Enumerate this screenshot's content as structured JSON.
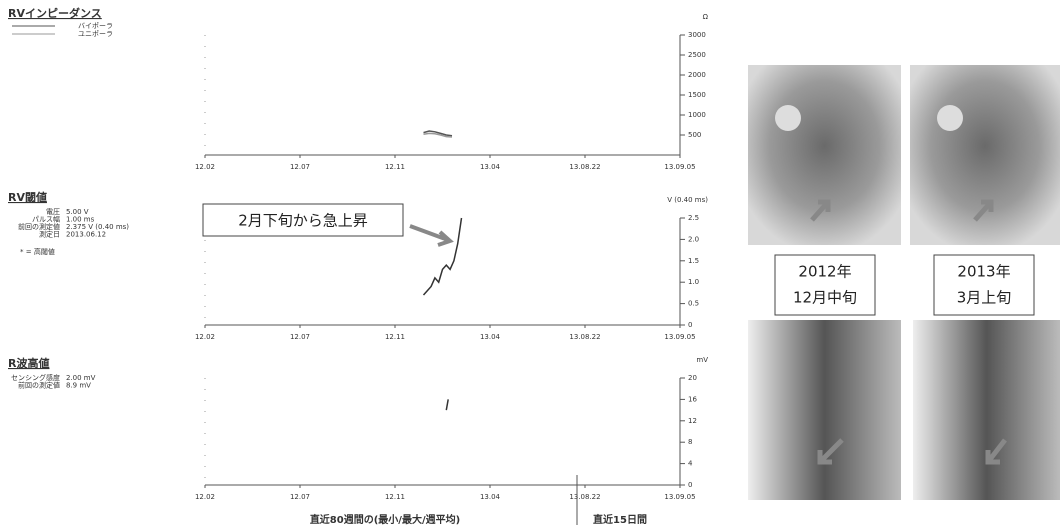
{
  "chart_data": [
    {
      "type": "line",
      "title": "RVインピーダンス",
      "y_label": "Ω",
      "xlim": [
        0,
        5
      ],
      "xticks": [
        {
          "value": 0,
          "label": "12.02"
        },
        {
          "value": 1,
          "label": "12.07"
        },
        {
          "value": 2,
          "label": "12.11"
        },
        {
          "value": 3,
          "label": "13.04"
        },
        {
          "value": 4,
          "label": "13.08.22"
        },
        {
          "value": 5,
          "label": "13.09.05"
        }
      ],
      "ylim": [
        0,
        3000
      ],
      "yticks": [
        500,
        1000,
        1500,
        2000,
        2500,
        3000
      ],
      "series": [
        {
          "name": "バイポーラ",
          "color": "#555555",
          "x": [
            2.3,
            2.36,
            2.42,
            2.48,
            2.54,
            2.6
          ],
          "values": [
            560,
            600,
            580,
            540,
            500,
            480
          ]
        },
        {
          "name": "ユニポーラ",
          "color": "#999999",
          "x": [
            2.3,
            2.36,
            2.42,
            2.48,
            2.54,
            2.6
          ],
          "values": [
            520,
            540,
            530,
            500,
            460,
            450
          ]
        }
      ]
    },
    {
      "type": "line",
      "title": "RV閾値",
      "y_label": "V (0.40 ms)",
      "notes": [
        [
          "電圧",
          "5.00 V"
        ],
        [
          "パルス幅",
          "1.00 ms"
        ],
        [
          "前回の測定値",
          "2.375 V (0.40 ms)"
        ],
        [
          "測定日",
          "2013.06.12"
        ]
      ],
      "marker_note": "* = 高閾値",
      "annotation": "2月下旬から急上昇",
      "xlim": [
        0,
        5
      ],
      "xticks": [
        {
          "value": 0,
          "label": "12.02"
        },
        {
          "value": 1,
          "label": "12.07"
        },
        {
          "value": 2,
          "label": "12.11"
        },
        {
          "value": 3,
          "label": "13.04"
        },
        {
          "value": 4,
          "label": "13.08.22"
        },
        {
          "value": 5,
          "label": "13.09.05"
        }
      ],
      "ylim": [
        0,
        2.5
      ],
      "yticks": [
        0,
        0.5,
        {
          "value": 1,
          "label": "1.0"
        },
        1.5,
        {
          "value": 2,
          "label": "2.0"
        },
        2.5
      ],
      "series": [
        {
          "name": null,
          "color": "#333333",
          "x": [
            2.3,
            2.34,
            2.38,
            2.42,
            2.46,
            2.5,
            2.54,
            2.58,
            2.62,
            2.66,
            2.7
          ],
          "values": [
            0.7,
            0.8,
            0.9,
            1.1,
            1.0,
            1.3,
            1.4,
            1.3,
            1.5,
            1.9,
            2.5
          ]
        }
      ]
    },
    {
      "type": "line",
      "title": "R波高値",
      "y_label": "mV",
      "notes": [
        [
          "センシング感度",
          "2.00 mV"
        ],
        [
          "前回の測定値",
          "8.9 mV"
        ]
      ],
      "x_label": "直近80週間の(最小/最大/週平均)",
      "x_label_right": "直近15日間",
      "xlim": [
        0,
        5
      ],
      "xticks": [
        {
          "value": 0,
          "label": "12.02"
        },
        {
          "value": 1,
          "label": "12.07"
        },
        {
          "value": 2,
          "label": "12.11"
        },
        {
          "value": 3,
          "label": "13.04"
        },
        {
          "value": 4,
          "label": "13.08.22"
        },
        {
          "value": 5,
          "label": "13.09.05"
        }
      ],
      "ylim": [
        0,
        20
      ],
      "yticks": [
        0,
        4,
        8,
        12,
        16,
        20
      ],
      "series": [
        {
          "name": null,
          "color": "#333333",
          "x": [
            2.54,
            2.56
          ],
          "values": [
            14,
            16
          ]
        }
      ]
    }
  ],
  "images": [
    {
      "caption": [
        "2012年",
        "12月中旬"
      ]
    },
    {
      "caption": [
        "2013年",
        "3月上旬"
      ]
    }
  ]
}
